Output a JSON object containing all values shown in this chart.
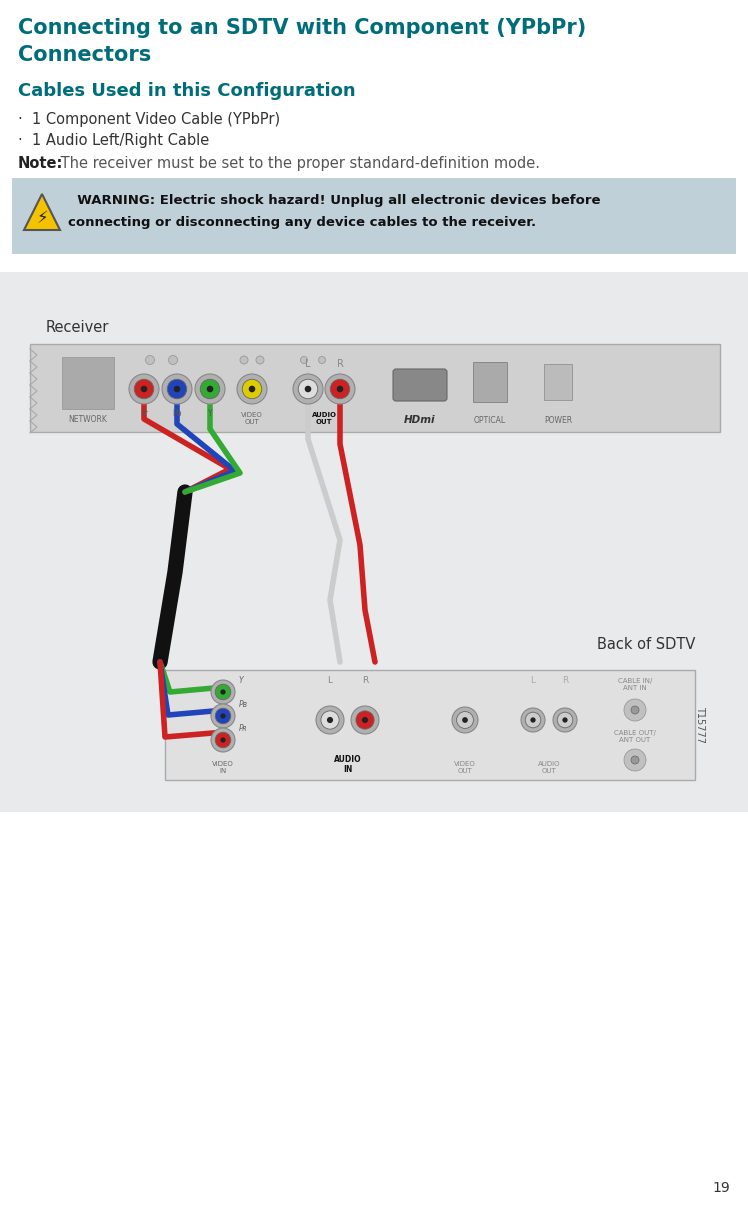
{
  "title_line1": "Connecting to an SDTV with Component (YPbPr)",
  "title_line2": "Connectors",
  "title_color": "#006d7a",
  "section_title": "Cables Used in this Configuration",
  "section_title_color": "#006d7a",
  "bullet1": "1 Component Video Cable (YPbPr)",
  "bullet2": "1 Audio Left/Right Cable",
  "note_bold": "Note:",
  "note_text": " The receiver must be set to the proper standard‑definition mode.",
  "warning_bg": "#bfd0d8",
  "warn_line1": "  WARNING: Electric shock hazard! Unplug all electronic devices before",
  "warn_line2": "connecting or disconnecting any device cables to the receiver.",
  "receiver_label": "Receiver",
  "back_sdtv_label": "Back of SDTV",
  "page_number": "19",
  "diagram_bg": "#e8eaeb",
  "t_number": "T15777",
  "bg_color": "#ffffff",
  "text_color": "#333333"
}
